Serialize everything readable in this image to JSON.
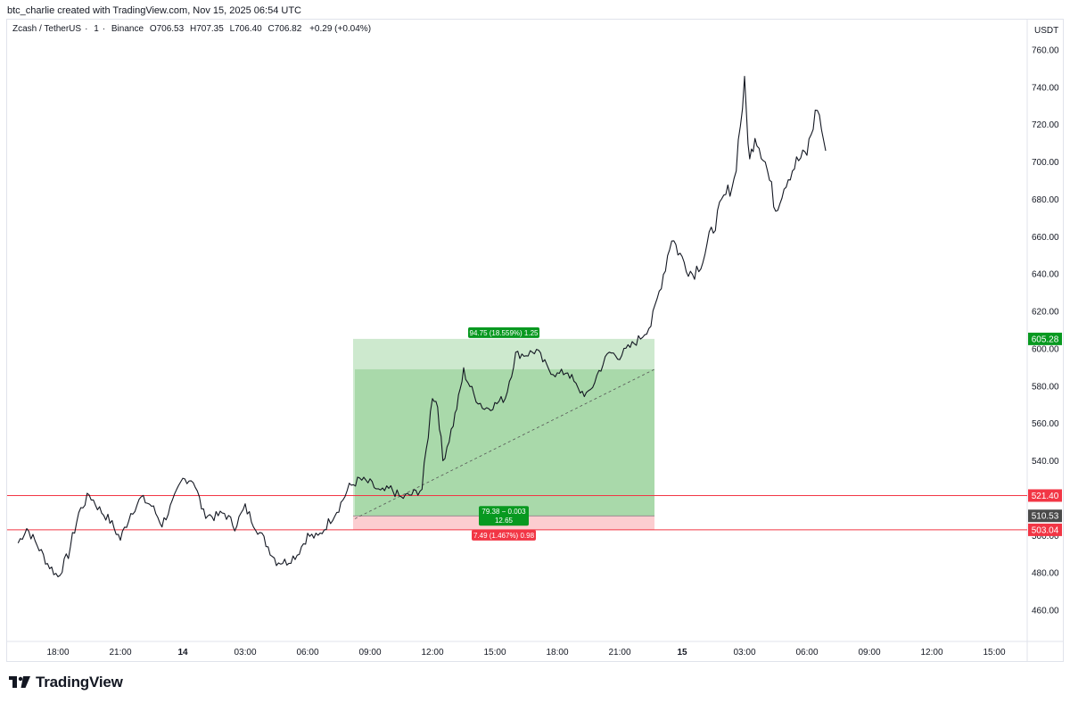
{
  "header": {
    "author": "btc_charlie",
    "created_text": "created with TradingView.com, Nov 15, 2025 06:54 UTC"
  },
  "legend": {
    "symbol": "Zcash / TetherUS",
    "interval": "1",
    "exchange": "Binance",
    "open": "O706.53",
    "high": "H707.35",
    "low": "L706.40",
    "close": "C706.82",
    "change": "+0.29 (+0.04%)"
  },
  "brand": {
    "name": "TradingView"
  },
  "colors": {
    "candle": "#131722",
    "profit_zone": "#4caf50",
    "stop_zone": "#f23645",
    "hline": "#f23645",
    "target_badge": "#089981",
    "stop_badge": "#f23645",
    "price_badge": "#4a4a4a",
    "axis_text": "#131722",
    "border": "#e0e3eb"
  },
  "chart_data": {
    "type": "line",
    "title": "Zcash / TetherUS · 1 · Binance",
    "xlabel": "",
    "ylabel": "USDT",
    "currency_label": "USDT",
    "ylim": [
      449,
      769
    ],
    "y_ticks": [
      "760.00",
      "740.00",
      "720.00",
      "700.00",
      "680.00",
      "660.00",
      "640.00",
      "620.00",
      "600.00",
      "580.00",
      "560.00",
      "540.00",
      "520.00",
      "500.00",
      "480.00",
      "460.00"
    ],
    "x_ticks": [
      "18:00",
      "21:00",
      "14",
      "03:00",
      "06:00",
      "09:00",
      "12:00",
      "15:00",
      "18:00",
      "21:00",
      "15",
      "03:00",
      "06:00",
      "09:00",
      "12:00",
      "15:00"
    ],
    "series": [
      {
        "x": [
          "Nov 13 16:05",
          "Nov 13 16:30",
          "Nov 13 17:00",
          "Nov 13 17:30",
          "Nov 13 18:00",
          "Nov 13 18:30",
          "Nov 13 19:00",
          "Nov 13 19:30",
          "Nov 13 20:00",
          "Nov 13 20:30",
          "Nov 13 21:00",
          "Nov 13 21:30",
          "Nov 13 22:00",
          "Nov 13 22:30",
          "Nov 13 23:00",
          "Nov 13 23:30",
          "Nov 14 00:00",
          "Nov 14 00:30",
          "Nov 14 01:00",
          "Nov 14 01:30",
          "Nov 14 02:00",
          "Nov 14 02:30",
          "Nov 14 03:00",
          "Nov 14 03:30",
          "Nov 14 04:00",
          "Nov 14 04:30",
          "Nov 14 05:00",
          "Nov 14 05:30",
          "Nov 14 06:00",
          "Nov 14 06:30",
          "Nov 14 07:00",
          "Nov 14 07:30",
          "Nov 14 08:00",
          "Nov 14 08:30",
          "Nov 14 09:00",
          "Nov 14 09:30",
          "Nov 14 10:00",
          "Nov 14 10:30",
          "Nov 14 11:00",
          "Nov 14 11:30",
          "Nov 14 12:00",
          "Nov 14 12:15",
          "Nov 14 12:30",
          "Nov 14 13:00",
          "Nov 14 13:15",
          "Nov 14 13:30",
          "Nov 14 14:00",
          "Nov 14 14:30",
          "Nov 14 15:00",
          "Nov 14 15:30",
          "Nov 14 16:00",
          "Nov 14 16:30",
          "Nov 14 17:00",
          "Nov 14 17:30",
          "Nov 14 18:00",
          "Nov 14 18:30",
          "Nov 14 19:00",
          "Nov 14 19:30",
          "Nov 14 20:00",
          "Nov 14 20:30",
          "Nov 14 21:00",
          "Nov 14 21:30",
          "Nov 14 22:00",
          "Nov 14 22:30",
          "Nov 14 23:00",
          "Nov 14 23:30",
          "Nov 15 00:00",
          "Nov 15 00:30",
          "Nov 15 01:00",
          "Nov 15 01:30",
          "Nov 15 02:00",
          "Nov 15 02:30",
          "Nov 15 03:00",
          "Nov 15 03:15",
          "Nov 15 03:30",
          "Nov 15 04:00",
          "Nov 15 04:30",
          "Nov 15 05:00",
          "Nov 15 05:30",
          "Nov 15 06:00",
          "Nov 15 06:30",
          "Nov 15 06:54"
        ],
        "values": [
          496,
          504,
          495,
          485,
          478,
          490,
          512,
          522,
          514,
          508,
          498,
          512,
          520,
          516,
          506,
          517,
          530,
          530,
          512,
          510,
          512,
          505,
          515,
          505,
          496,
          486,
          486,
          490,
          500,
          499,
          507,
          515,
          526,
          530,
          528,
          523,
          525,
          520,
          522,
          525,
          575,
          570,
          540,
          560,
          573,
          588,
          575,
          568,
          570,
          574,
          597,
          597,
          599,
          590,
          586,
          588,
          578,
          575,
          588,
          598,
          596,
          601,
          606,
          613,
          635,
          660,
          648,
          640,
          648,
          665,
          680,
          690,
          741,
          700,
          715,
          700,
          675,
          690,
          700,
          705,
          730,
          706
        ]
      }
    ],
    "trade": {
      "type": "long position",
      "entry": 510.53,
      "target": 605.28,
      "stop": 503.04,
      "target_label": "94.75 (18.559%) 1.25",
      "entry_label_1": "79.38 − 0.003",
      "entry_label_2": "12.65",
      "stop_label": "7.49 (1.467%) 0.98"
    },
    "horizontal_lines": [
      521.4,
      503.04
    ],
    "price_badges": [
      {
        "text": "605.28",
        "value": 605.28,
        "kind": "target"
      },
      {
        "text": "521.40",
        "value": 521.4,
        "kind": "line"
      },
      {
        "text": "510.53",
        "value": 510.53,
        "kind": "price"
      },
      {
        "text": "503.04",
        "value": 503.04,
        "kind": "stop"
      }
    ],
    "grid": false,
    "legend_position": "top-left"
  }
}
